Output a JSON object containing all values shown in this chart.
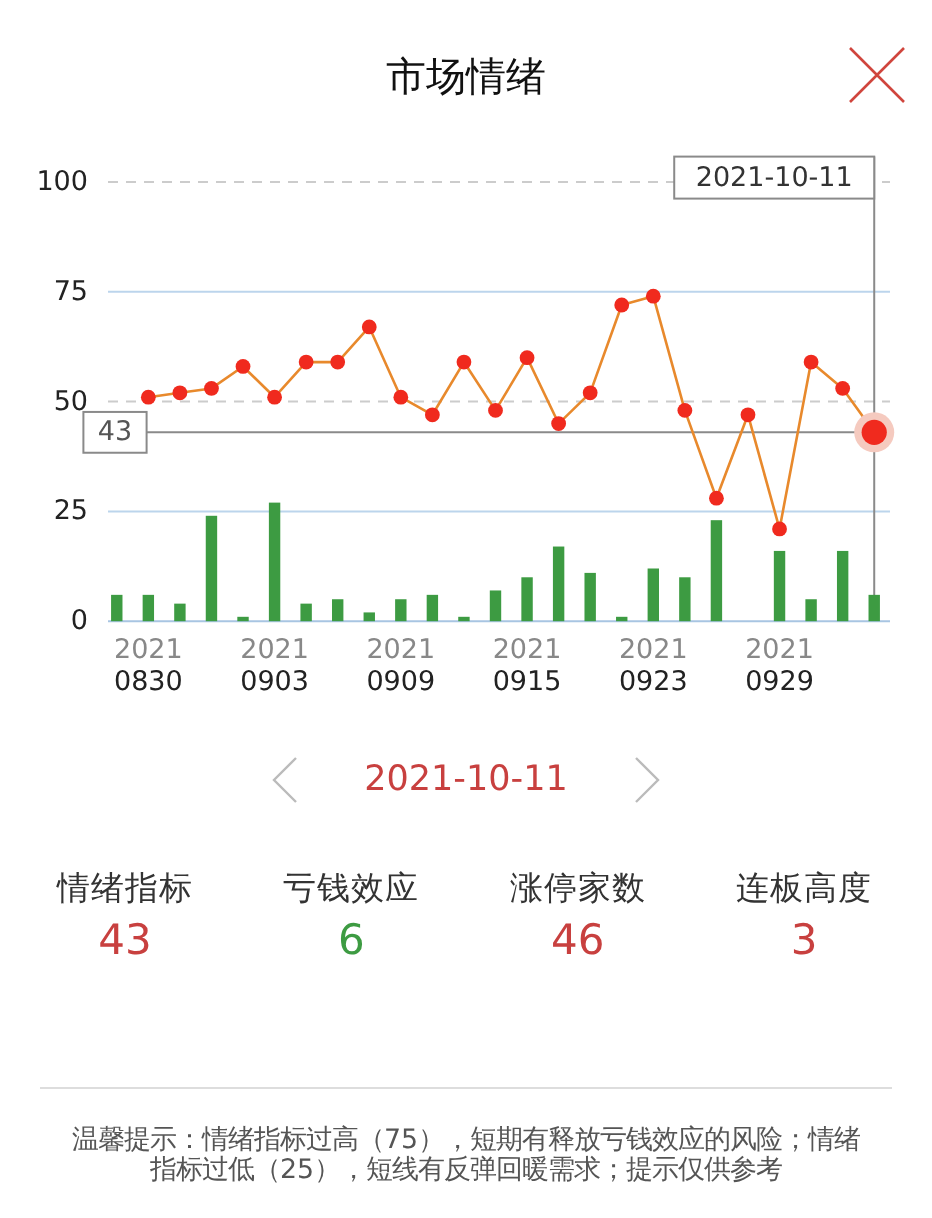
{
  "chart_data": [
    {
      "type": "line",
      "title": "市场情绪",
      "categories": [
        null,
        "2021\n0830",
        null,
        null,
        null,
        "2021\n0903",
        null,
        null,
        null,
        "2021\n0909",
        null,
        null,
        null,
        "2021\n0915",
        null,
        null,
        null,
        "2021\n0923",
        null,
        null,
        null,
        "2021\n0929",
        null,
        null,
        null
      ],
      "series": [
        {
          "type": "bar",
          "color": "#3d9b42",
          "values": [
            6,
            6,
            4,
            24,
            1,
            27,
            4,
            5,
            2,
            5,
            6,
            1,
            7,
            10,
            17,
            11,
            1,
            12,
            10,
            23,
            0,
            16,
            5,
            16,
            6
          ]
        },
        {
          "type": "line",
          "color": "#e8892c",
          "colors": [
            null,
            "#f02a1e",
            "#f02a1e",
            "#f02a1e",
            "#f02a1e",
            "#f02a1e",
            "#f02a1e",
            "#f02a1e",
            "#f02a1e",
            "#f02a1e",
            "#f02a1e",
            "#f02a1e",
            "#f02a1e",
            "#f02a1e",
            "#f02a1e",
            "#f02a1e",
            "#f02a1e",
            "#f02a1e",
            "#f02a1e",
            "#f02a1e",
            "#f02a1e",
            "#f02a1e",
            "#f02a1e",
            "#f02a1e",
            "#f02a1e"
          ],
          "values": [
            null,
            51,
            52,
            53,
            58,
            51,
            59,
            59,
            67,
            51,
            47,
            59,
            48,
            60,
            45,
            52,
            72,
            74,
            48,
            28,
            47,
            21,
            59,
            53,
            43
          ]
        }
      ],
      "ylim": [
        0,
        100
      ],
      "yticks": [
        0,
        25,
        50,
        75,
        100
      ],
      "marker": "circle",
      "ref_lines": [
        {
          "axis": "y",
          "value": 100,
          "color": "#cccccc",
          "line_style": "dashed"
        },
        {
          "axis": "y",
          "value": 75,
          "color": "#bcd5ec"
        },
        {
          "axis": "y",
          "value": 50,
          "color": "#cccccc",
          "line_style": "dashed"
        },
        {
          "axis": "y",
          "value": 25,
          "color": "#bcd5ec"
        },
        {
          "axis": "y",
          "value": 43,
          "label": "43",
          "color": "#8a8a8a"
        }
      ],
      "annotations": [
        "2021-10-11"
      ]
    },
    {
      "type": "other",
      "title": "2021-10-11",
      "categories": [
        "情绪指标",
        "亏钱效应",
        "涨停家数",
        "连板高度"
      ],
      "values": [
        43,
        6,
        46,
        3
      ],
      "colors": [
        "#c8403f",
        "#3d9b42",
        "#c8403f",
        "#c8403f"
      ],
      "data_labels": true,
      "annotations": [
        "温馨提示：情绪指标过高（75），短期有释放亏钱效应的风险；情绪指标过低（25），短线有反弹回暖需求；提示仅供参考"
      ]
    }
  ]
}
